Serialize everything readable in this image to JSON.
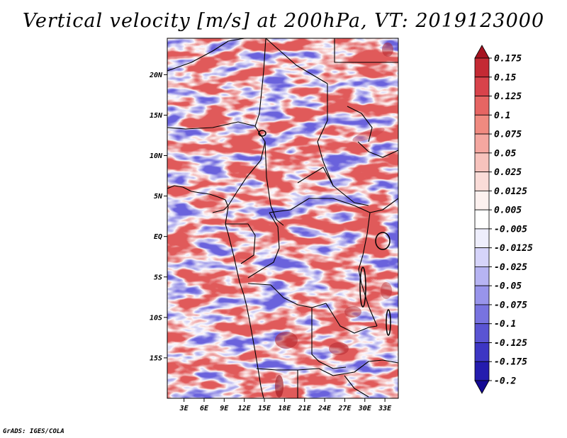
{
  "title": "Vertical velocity [m/s] at 200hPa, VT: 2019123000",
  "credit": "GrADS: IGES/COLA",
  "map": {
    "lat_labels": [
      "20N",
      "15N",
      "10N",
      "5N",
      "EQ",
      "5S",
      "10S",
      "15S"
    ],
    "lon_labels": [
      "3E",
      "6E",
      "9E",
      "12E",
      "15E",
      "18E",
      "21E",
      "24E",
      "27E",
      "30E",
      "33E"
    ],
    "lat_values": [
      20,
      15,
      10,
      5,
      0,
      -5,
      -10,
      -15
    ],
    "lon_values": [
      3,
      6,
      9,
      12,
      15,
      18,
      21,
      24,
      27,
      30,
      33
    ],
    "lon_range": [
      0.5,
      35
    ],
    "lat_range": [
      -20,
      24.5
    ]
  },
  "colorbar": {
    "labels": [
      "0.175",
      "0.15",
      "0.125",
      "0.1",
      "0.075",
      "0.05",
      "0.025",
      "0.0125",
      "0.005",
      "-0.005",
      "-0.0125",
      "-0.025",
      "-0.05",
      "-0.075",
      "-0.1",
      "-0.125",
      "-0.175",
      "-0.2"
    ],
    "colors": [
      "#a51320",
      "#c42a34",
      "#d8434b",
      "#e66563",
      "#f08a80",
      "#f4a7a0",
      "#f7c3bd",
      "#fadcd8",
      "#fdf1ef",
      "#ffffff",
      "#eeeefc",
      "#d6d4fa",
      "#b7b4f3",
      "#9894eb",
      "#7873e0",
      "#5a54d3",
      "#3d36c4",
      "#241cae",
      "#140a94"
    ]
  },
  "chart_data": {
    "type": "heatmap",
    "title": "Vertical velocity [m/s] at 200hPa, VT: 2019123000",
    "variable": "Vertical velocity",
    "units": "m/s",
    "level": "200hPa",
    "valid_time": "2019123000",
    "x_ticks": [
      "3E",
      "6E",
      "9E",
      "12E",
      "15E",
      "18E",
      "21E",
      "24E",
      "27E",
      "30E",
      "33E"
    ],
    "y_ticks": [
      "20N",
      "15N",
      "10N",
      "5N",
      "EQ",
      "5S",
      "10S",
      "15S"
    ],
    "color_levels": [
      -0.2,
      -0.175,
      -0.125,
      -0.1,
      -0.075,
      -0.05,
      -0.025,
      -0.0125,
      -0.005,
      0.005,
      0.0125,
      0.025,
      0.05,
      0.075,
      0.1,
      0.125,
      0.15,
      0.175
    ]
  }
}
